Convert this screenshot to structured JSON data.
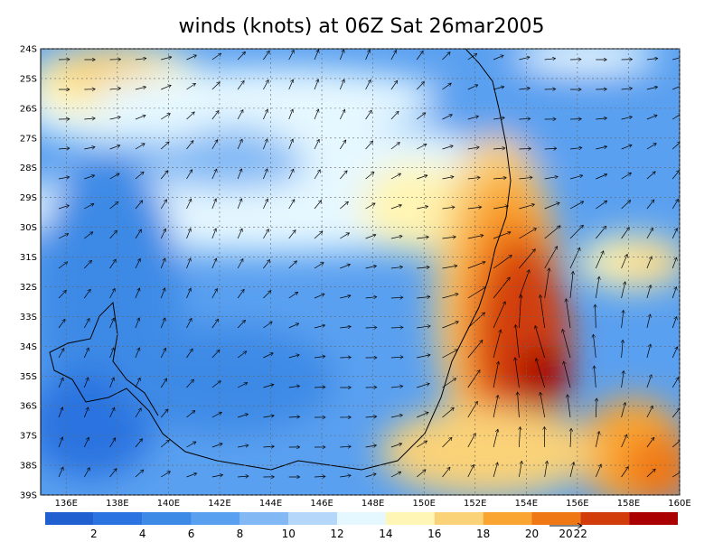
{
  "map": {
    "title": "winds (knots) at 06Z Sat 26mar2005",
    "lat_labels": [
      "24S",
      "25S",
      "26S",
      "27S",
      "28S",
      "29S",
      "30S",
      "31S",
      "32S",
      "33S",
      "34S",
      "35S",
      "36S",
      "37S",
      "38S",
      "39S"
    ],
    "lon_labels": [
      "136E",
      "138E",
      "140E",
      "142E",
      "144E",
      "146E",
      "148E",
      "150E",
      "152E",
      "154E",
      "156E",
      "158E",
      "160E"
    ],
    "colorbar": {
      "levels": [
        2,
        4,
        6,
        8,
        10,
        12,
        14,
        16,
        18,
        20,
        22
      ],
      "colors": [
        "#1f5fd0",
        "#2a73e0",
        "#3c8ae6",
        "#5aa0f0",
        "#82b9f5",
        "#b4d7fa",
        "#e6f8ff",
        "#fff5b4",
        "#fad278",
        "#faa532",
        "#f07814",
        "#d23c0a",
        "#aa0000"
      ]
    },
    "vector_ref": {
      "label": "20"
    }
  }
}
